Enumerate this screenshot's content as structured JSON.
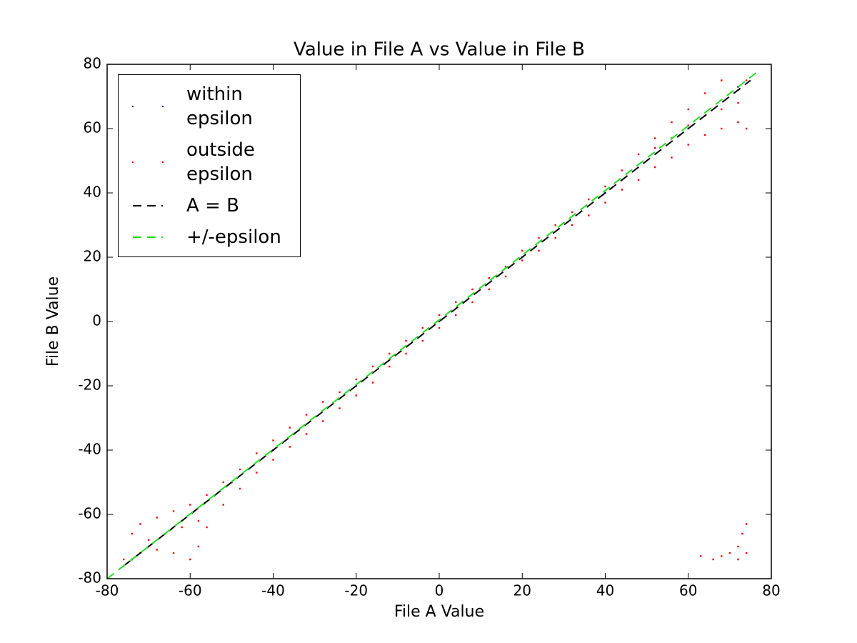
{
  "chart_data": {
    "type": "scatter",
    "title": "Value in File A vs Value in File B",
    "x_label": "File A Value",
    "y_label": "File B Value",
    "xlim": [
      -80,
      80
    ],
    "ylim": [
      -80,
      80
    ],
    "xticks": [
      -80,
      -60,
      -40,
      -20,
      0,
      20,
      40,
      60,
      80
    ],
    "yticks": [
      -80,
      -60,
      -40,
      -20,
      0,
      20,
      40,
      60,
      80
    ],
    "grid": false,
    "series": [
      {
        "name": "within epsilon",
        "kind": "scatter",
        "color": "#00008b",
        "x": [
          -74,
          -50,
          -40,
          -20,
          0,
          20,
          40,
          60,
          72
        ],
        "y": [
          -74,
          -50,
          -40,
          -20,
          0,
          20,
          40,
          60,
          73
        ]
      },
      {
        "name": "outside epsilon",
        "kind": "scatter",
        "color": "#ff0000",
        "x": [
          -74,
          -72,
          -68,
          -64,
          -60,
          -56,
          -52,
          -48,
          -44,
          -40,
          -36,
          -32,
          -28,
          -24,
          -20,
          -16,
          -12,
          -8,
          -4,
          0,
          4,
          8,
          12,
          16,
          20,
          24,
          28,
          32,
          36,
          40,
          44,
          48,
          52,
          56,
          60,
          64,
          68,
          72,
          -76,
          -72,
          -68,
          -64,
          -60,
          -58,
          -56,
          -52,
          -48,
          -44,
          -40,
          -36,
          -32,
          -28,
          -24,
          -20,
          -16,
          -12,
          -8,
          -4,
          0,
          4,
          8,
          12,
          16,
          20,
          24,
          28,
          32,
          36,
          40,
          44,
          48,
          52,
          56,
          60,
          64,
          68,
          72,
          74,
          52,
          56,
          60,
          64,
          68,
          72,
          74,
          63,
          66,
          68,
          70,
          72,
          73,
          74,
          74,
          72,
          -66,
          -62,
          -70,
          -58
        ],
        "y": [
          -66,
          -63,
          -61,
          -59,
          -57,
          -54,
          -50,
          -46,
          -41,
          -37,
          -33,
          -29,
          -25,
          -22,
          -18,
          -14,
          -10,
          -6,
          -2,
          2,
          6,
          10,
          13.5,
          17,
          22,
          26,
          30,
          34,
          38,
          42,
          47,
          52,
          57,
          62,
          66,
          71,
          75,
          72,
          -74,
          -72,
          -71,
          -72,
          -74,
          -70,
          -64,
          -57,
          -52,
          -47,
          -43,
          -39,
          -35,
          -31,
          -27,
          -23,
          -19,
          -14,
          -10,
          -6,
          -2,
          2,
          6,
          10,
          14,
          19,
          22,
          26,
          30,
          33,
          37,
          41,
          44,
          48,
          51,
          55,
          58,
          60,
          62,
          60,
          54,
          57,
          61,
          64,
          66,
          68,
          75,
          -73,
          -74,
          -73,
          -72,
          -70,
          -66,
          -63,
          -72,
          -74,
          -66,
          -64,
          -68,
          -62
        ]
      },
      {
        "name": "A = B",
        "kind": "line",
        "color": "#000000",
        "x": [
          -76,
          75
        ],
        "y": [
          -76,
          75
        ]
      },
      {
        "name": "+/-epsilon",
        "kind": "line",
        "color": "#22dd22",
        "x": [
          -80,
          77
        ],
        "y": [
          -80,
          78
        ]
      }
    ]
  }
}
